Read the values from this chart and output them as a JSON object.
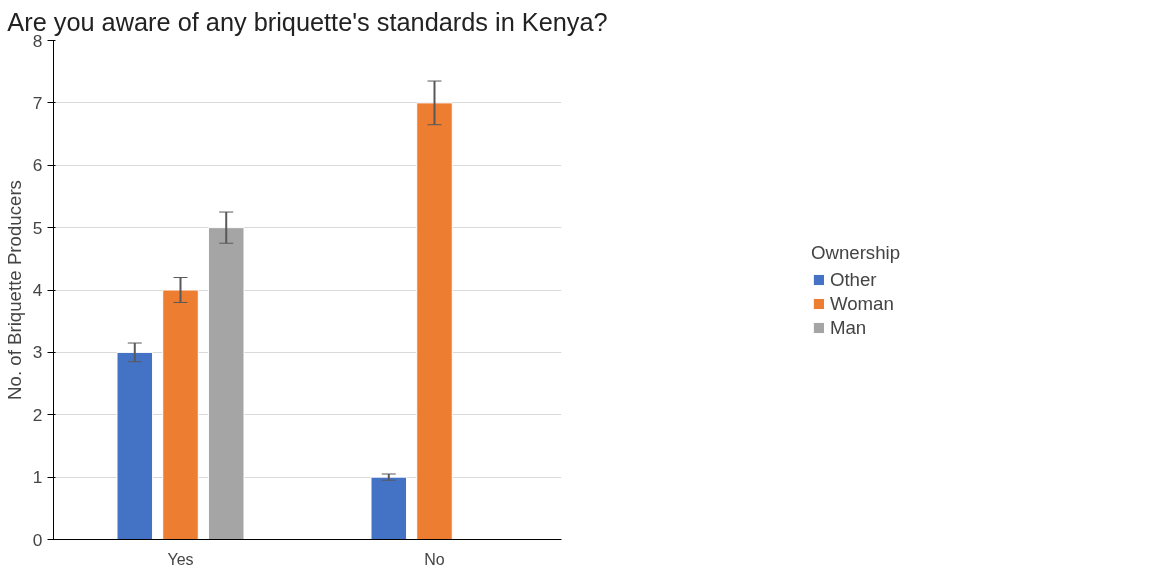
{
  "chart_data": {
    "type": "bar",
    "title": "Are you aware of any briquette's standards in Kenya?",
    "ylabel": "No. of Briquette Producers",
    "legend_title": "Ownership",
    "categories": [
      "Yes",
      "No"
    ],
    "series": [
      {
        "name": "Other",
        "color": "#4472c4",
        "values": [
          3,
          1
        ],
        "errors": [
          0.15,
          0.05
        ]
      },
      {
        "name": "Woman",
        "color": "#ed7d31",
        "values": [
          4,
          7
        ],
        "errors": [
          0.2,
          0.35
        ]
      },
      {
        "name": "Man",
        "color": "#a5a5a5",
        "values": [
          5,
          null
        ],
        "errors": [
          0.25,
          null
        ]
      }
    ],
    "ylim": [
      0,
      8
    ],
    "yticks": [
      0,
      1,
      2,
      3,
      4,
      5,
      6,
      7,
      8
    ],
    "grid": "y",
    "legend": "right"
  }
}
